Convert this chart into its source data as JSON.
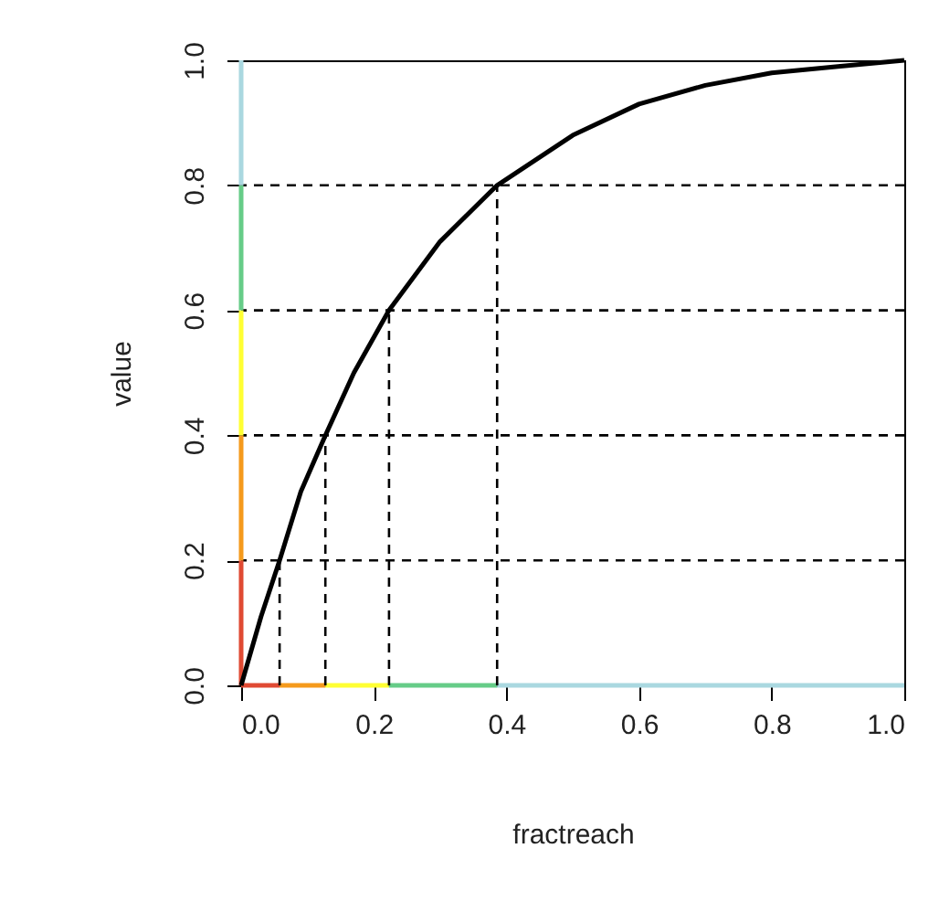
{
  "chart_data": {
    "type": "line",
    "xlabel": "fractreach",
    "ylabel": "value",
    "xlim": [
      0,
      1
    ],
    "ylim": [
      0,
      1
    ],
    "xticks": [
      {
        "value": 0,
        "label": "0.0"
      },
      0.2,
      0.4,
      0.6,
      0.8,
      {
        "value": 1,
        "label": "1.0"
      }
    ],
    "yticks": [
      {
        "value": 0,
        "label": "0.0"
      },
      0.2,
      0.4,
      0.6,
      0.8,
      {
        "value": 1,
        "label": "1.0"
      }
    ],
    "grid": false,
    "marker": "none",
    "series": [
      {
        "color": "#e04a33",
        "line_style": "solid",
        "x": [
          0,
          0
        ],
        "values": [
          0,
          0.2
        ]
      },
      {
        "color": "#f59a1c",
        "line_style": "solid",
        "x": [
          0,
          0
        ],
        "values": [
          0.2,
          0.4
        ]
      },
      {
        "color": "#ffff33",
        "line_style": "solid",
        "x": [
          0,
          0
        ],
        "values": [
          0.4,
          0.6
        ]
      },
      {
        "color": "#66cc88",
        "line_style": "solid",
        "x": [
          0,
          0
        ],
        "values": [
          0.6,
          0.8
        ]
      },
      {
        "color": "#aad8e0",
        "line_style": "solid",
        "x": [
          0,
          0
        ],
        "values": [
          0.8,
          1.0
        ]
      },
      {
        "color": "#e04a33",
        "line_style": "solid",
        "x": [
          0,
          0.058
        ],
        "values": [
          0,
          0
        ]
      },
      {
        "color": "#f59a1c",
        "line_style": "solid",
        "x": [
          0.058,
          0.127
        ],
        "values": [
          0,
          0
        ]
      },
      {
        "color": "#ffff33",
        "line_style": "solid",
        "x": [
          0.127,
          0.223
        ],
        "values": [
          0,
          0
        ]
      },
      {
        "color": "#66cc88",
        "line_style": "solid",
        "x": [
          0.223,
          0.386
        ],
        "values": [
          0,
          0
        ]
      },
      {
        "color": "#aad8e0",
        "line_style": "solid",
        "x": [
          0.386,
          1.0
        ],
        "values": [
          0,
          0
        ]
      },
      {
        "color": "#000000",
        "line_style": "dashed",
        "x": [
          0.058,
          0.058
        ],
        "values": [
          0,
          0.2
        ]
      },
      {
        "color": "#000000",
        "line_style": "dashed",
        "x": [
          0.127,
          0.127
        ],
        "values": [
          0,
          0.4
        ]
      },
      {
        "color": "#000000",
        "line_style": "dashed",
        "x": [
          0.223,
          0.223
        ],
        "values": [
          0,
          0.6
        ]
      },
      {
        "color": "#000000",
        "line_style": "dashed",
        "x": [
          0.386,
          0.386
        ],
        "values": [
          0,
          0.8
        ]
      },
      {
        "color": "#000000",
        "line_style": "solid",
        "x": [
          0,
          0.03,
          0.058,
          0.09,
          0.127,
          0.17,
          0.223,
          0.3,
          0.386,
          0.5,
          0.6,
          0.7,
          0.8,
          0.9,
          1.0
        ],
        "values": [
          0,
          0.11,
          0.2,
          0.31,
          0.4,
          0.5,
          0.6,
          0.71,
          0.8,
          0.88,
          0.93,
          0.96,
          0.98,
          0.99,
          1.0
        ]
      }
    ],
    "ref_lines": [
      {
        "axis": "y",
        "value": 0.2,
        "color": "#000000",
        "line_style": "dashed"
      },
      {
        "axis": "y",
        "value": 0.4,
        "color": "#000000",
        "line_style": "dashed"
      },
      {
        "axis": "y",
        "value": 0.6,
        "color": "#000000",
        "line_style": "dashed"
      },
      {
        "axis": "y",
        "value": 0.8,
        "color": "#000000",
        "line_style": "dashed"
      }
    ]
  }
}
